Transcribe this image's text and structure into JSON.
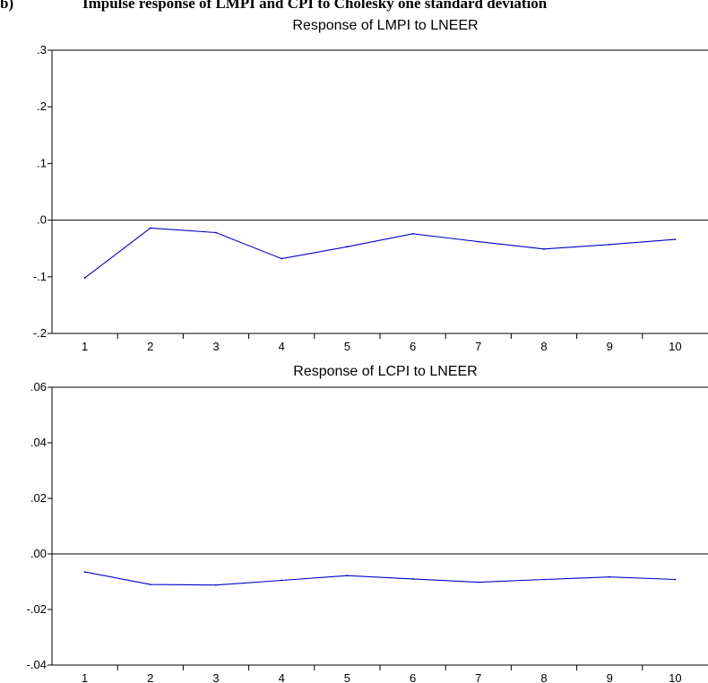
{
  "figure": {
    "label": "b)",
    "caption": "Impulse response of LMPI and CPI to Cholesky one standard deviation"
  },
  "chart_data": [
    {
      "type": "line",
      "title": "Response of LMPI to LNEER",
      "xlabel": "",
      "ylabel": "",
      "x": [
        1,
        2,
        3,
        4,
        5,
        6,
        7,
        8,
        9,
        10
      ],
      "series": [
        {
          "values": [
            -0.102,
            -0.014,
            -0.022,
            -0.068,
            -0.047,
            -0.024,
            -0.038,
            -0.051,
            -0.043,
            -0.034
          ]
        }
      ],
      "ylim": [
        -0.2,
        0.3
      ],
      "yticks": [
        -0.2,
        -0.1,
        0.0,
        0.1,
        0.2,
        0.3
      ],
      "ytick_labels": [
        "-.2",
        "-.1",
        ".0",
        ".1",
        ".2",
        ".3"
      ],
      "xticks": [
        "1",
        "2",
        "3",
        "4",
        "5",
        "6",
        "7",
        "8",
        "9",
        "10"
      ],
      "zero_line": true,
      "grid": false,
      "line_color": "#0000cc"
    },
    {
      "type": "line",
      "title": "Response of LCPI to LNEER",
      "xlabel": "",
      "ylabel": "",
      "x": [
        1,
        2,
        3,
        4,
        5,
        6,
        7,
        8,
        9,
        10
      ],
      "series": [
        {
          "values": [
            -0.0065,
            -0.011,
            -0.0112,
            -0.0095,
            -0.0078,
            -0.009,
            -0.0102,
            -0.0092,
            -0.0083,
            -0.0092
          ]
        }
      ],
      "ylim": [
        -0.04,
        0.06
      ],
      "yticks": [
        -0.04,
        -0.02,
        0.0,
        0.02,
        0.04,
        0.06
      ],
      "ytick_labels": [
        "-.04",
        "-.02",
        ".00",
        ".02",
        ".04",
        ".06"
      ],
      "xticks": [
        "1",
        "2",
        "3",
        "4",
        "5",
        "6",
        "7",
        "8",
        "9",
        "10"
      ],
      "zero_line": true,
      "grid": false,
      "line_color": "#0000cc"
    }
  ]
}
